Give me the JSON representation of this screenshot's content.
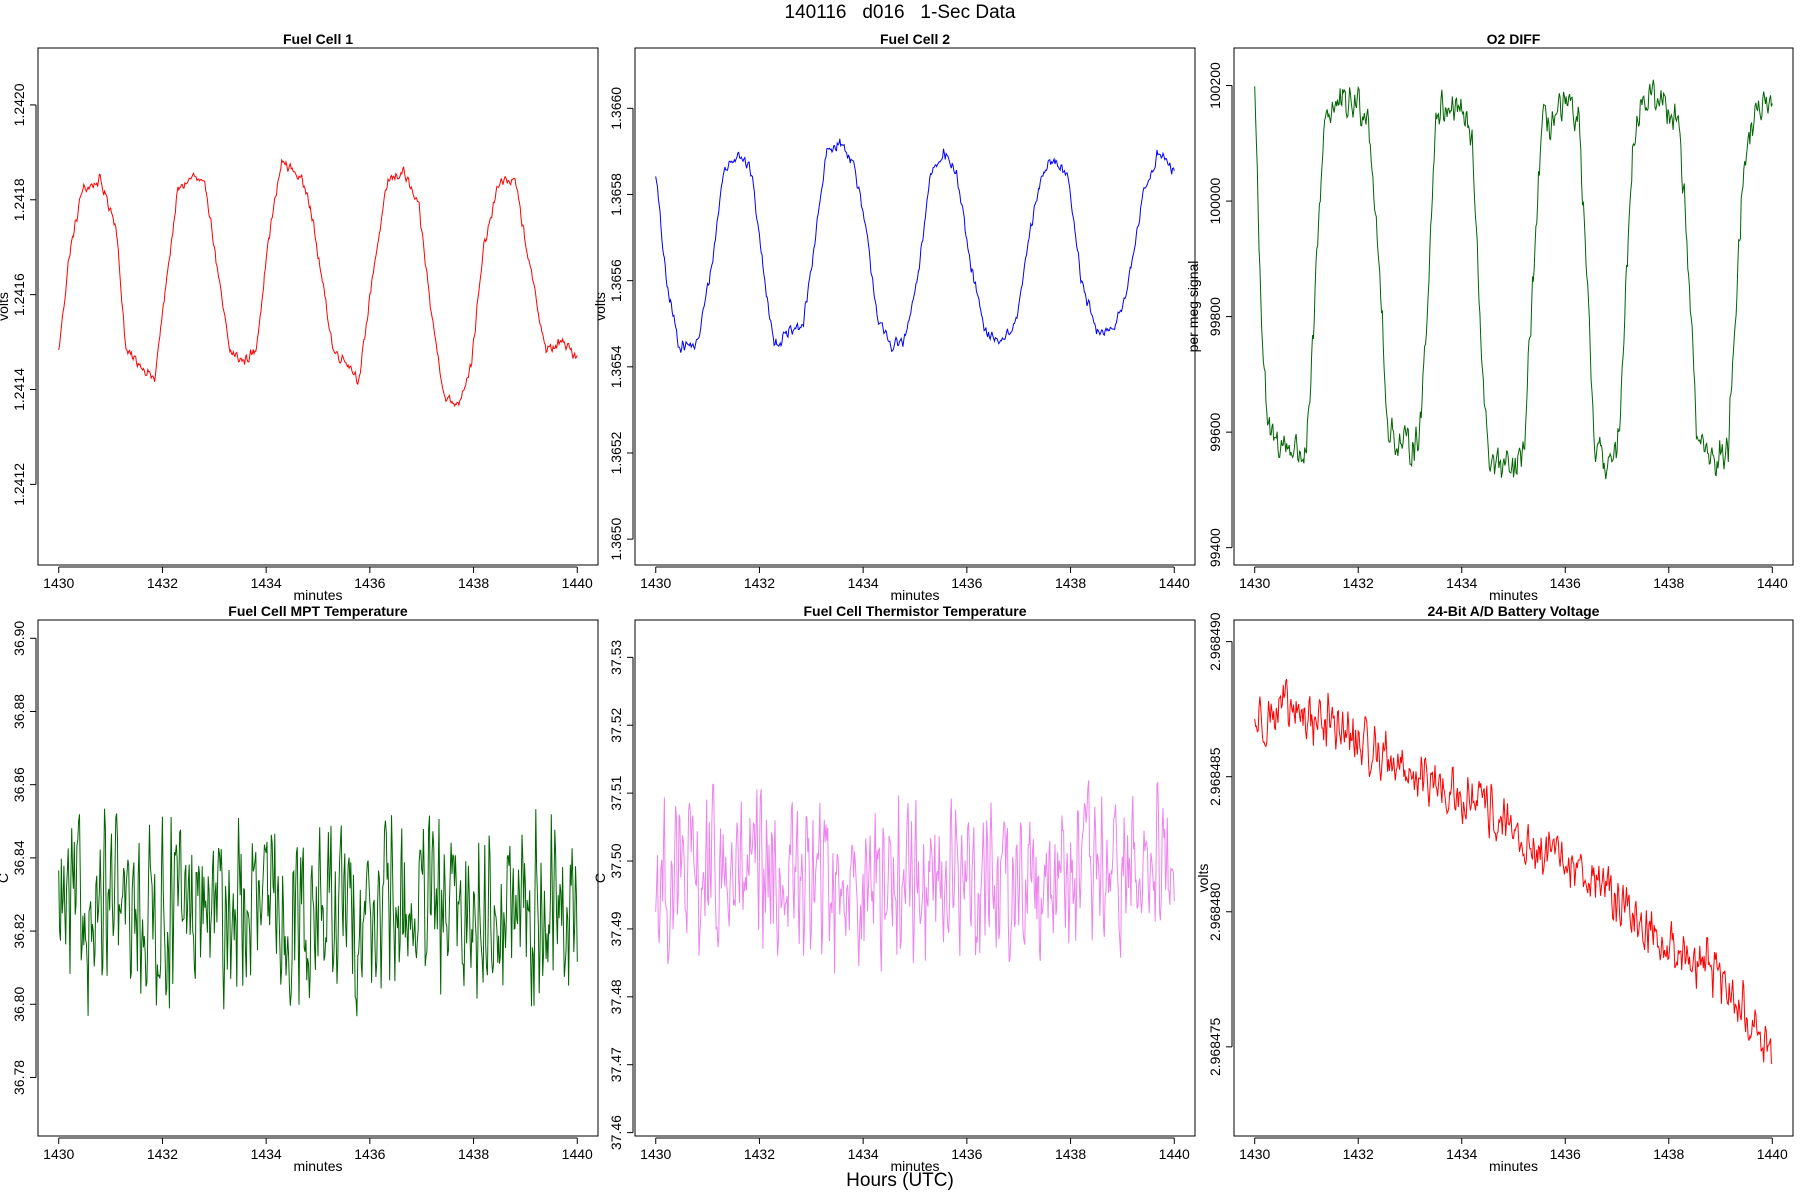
{
  "page": {
    "title": "140116   d016   1-Sec Data",
    "xlabel_global": "Hours (UTC)"
  },
  "chart_data": [
    {
      "type": "line",
      "title": "Fuel Cell 1",
      "xlabel": "minutes",
      "ylabel": "volts",
      "color": "#ff0000",
      "xlim": [
        1429.6,
        1440.4
      ],
      "ylim": [
        1.24103,
        1.24212
      ],
      "xticks": [
        1430,
        1432,
        1434,
        1436,
        1438,
        1440
      ],
      "yticks": [
        1.2412,
        1.2414,
        1.2416,
        1.2418,
        1.242
      ],
      "ytick_labels": [
        "1.2412",
        "1.2414",
        "1.2416",
        "1.2418",
        "1.2420"
      ],
      "series": [
        {
          "x": [
            1430.0,
            1430.2,
            1430.45,
            1430.8,
            1431.1,
            1431.3,
            1431.6,
            1431.85,
            1432.1,
            1432.3,
            1432.6,
            1432.85,
            1433.1,
            1433.3,
            1433.55,
            1433.8,
            1434.05,
            1434.3,
            1434.55,
            1434.8,
            1435.05,
            1435.3,
            1435.55,
            1435.8,
            1436.05,
            1436.35,
            1436.65,
            1436.95,
            1437.2,
            1437.45,
            1437.7,
            1437.95,
            1438.2,
            1438.5,
            1438.8,
            1439.1,
            1439.4,
            1439.7,
            1440.0
          ],
          "y": [
            1.24148,
            1.24168,
            1.24182,
            1.24184,
            1.24175,
            1.24148,
            1.24145,
            1.24142,
            1.24165,
            1.24182,
            1.24185,
            1.24182,
            1.24162,
            1.24148,
            1.24146,
            1.24148,
            1.24172,
            1.24188,
            1.24186,
            1.24182,
            1.24165,
            1.24148,
            1.24146,
            1.24142,
            1.24164,
            1.24184,
            1.24186,
            1.24178,
            1.24155,
            1.24138,
            1.24137,
            1.24145,
            1.2417,
            1.24184,
            1.24184,
            1.24165,
            1.24148,
            1.2415,
            1.24147
          ]
        }
      ],
      "noise": 1.5e-05
    },
    {
      "type": "line",
      "title": "Fuel Cell 2",
      "xlabel": "minutes",
      "ylabel": "volts",
      "color": "#0000ff",
      "xlim": [
        1429.6,
        1440.4
      ],
      "ylim": [
        1.36494,
        1.36614
      ],
      "xticks": [
        1430,
        1432,
        1434,
        1436,
        1438,
        1440
      ],
      "yticks": [
        1.365,
        1.3652,
        1.3654,
        1.3656,
        1.3658,
        1.366
      ],
      "ytick_labels": [
        "1.3650",
        "1.3652",
        "1.3654",
        "1.3656",
        "1.3658",
        "1.3660"
      ],
      "series": [
        {
          "x": [
            1430.0,
            1430.2,
            1430.45,
            1430.8,
            1431.1,
            1431.3,
            1431.6,
            1431.85,
            1432.1,
            1432.3,
            1432.6,
            1432.85,
            1433.1,
            1433.3,
            1433.55,
            1433.8,
            1434.05,
            1434.3,
            1434.55,
            1434.8,
            1435.05,
            1435.3,
            1435.55,
            1435.8,
            1436.05,
            1436.35,
            1436.65,
            1436.95,
            1437.2,
            1437.45,
            1437.7,
            1437.95,
            1438.2,
            1438.5,
            1438.8,
            1439.1,
            1439.4,
            1439.7,
            1440.0
          ],
          "y": [
            1.36585,
            1.3656,
            1.36545,
            1.36545,
            1.36565,
            1.36585,
            1.3659,
            1.36585,
            1.3656,
            1.36545,
            1.36548,
            1.3655,
            1.36572,
            1.3659,
            1.36592,
            1.36588,
            1.36572,
            1.3655,
            1.36545,
            1.36546,
            1.3656,
            1.36585,
            1.3659,
            1.36585,
            1.36565,
            1.36548,
            1.36546,
            1.3655,
            1.3657,
            1.36585,
            1.36588,
            1.36585,
            1.3656,
            1.36548,
            1.36548,
            1.36558,
            1.3658,
            1.3659,
            1.36585
          ]
        }
      ],
      "noise": 1.8e-05
    },
    {
      "type": "line",
      "title": "O2 DIFF",
      "xlabel": "minutes",
      "ylabel": "per meg signal",
      "color": "#006400",
      "xlim": [
        1429.6,
        1440.4
      ],
      "ylim": [
        99370,
        100265
      ],
      "xticks": [
        1430,
        1432,
        1434,
        1436,
        1438,
        1440
      ],
      "yticks": [
        99400,
        99600,
        99800,
        100000,
        100200
      ],
      "ytick_labels": [
        "99400",
        "99600",
        "99800",
        "100000",
        "100200"
      ],
      "series": [
        {
          "x": [
            1430.0,
            1430.08,
            1430.15,
            1430.25,
            1430.5,
            1430.8,
            1431.0,
            1431.1,
            1431.2,
            1431.35,
            1431.5,
            1432.0,
            1432.2,
            1432.4,
            1432.55,
            1432.75,
            1433.0,
            1433.2,
            1433.35,
            1433.5,
            1433.75,
            1434.0,
            1434.2,
            1434.35,
            1434.5,
            1434.75,
            1435.0,
            1435.2,
            1435.4,
            1435.55,
            1435.75,
            1436.0,
            1436.25,
            1436.4,
            1436.55,
            1436.75,
            1437.0,
            1437.15,
            1437.3,
            1437.45,
            1437.75,
            1438.0,
            1438.2,
            1438.4,
            1438.55,
            1438.75,
            1439.0,
            1439.15,
            1439.25,
            1439.4,
            1439.55,
            1439.75,
            1440.0
          ],
          "y": [
            100200,
            99950,
            99750,
            99600,
            99580,
            99570,
            99560,
            99700,
            99900,
            100150,
            100160,
            100170,
            100150,
            99900,
            99620,
            99580,
            99575,
            99600,
            99850,
            100150,
            100170,
            100160,
            100100,
            99800,
            99560,
            99540,
            99530,
            99560,
            99900,
            100130,
            100140,
            100160,
            100150,
            99900,
            99580,
            99550,
            99550,
            99800,
            100100,
            100170,
            100180,
            100160,
            100140,
            99850,
            99590,
            99560,
            99550,
            99580,
            99750,
            100000,
            100120,
            100160,
            100150
          ]
        }
      ],
      "noise": 40
    },
    {
      "type": "line",
      "title": "Fuel Cell MPT Temperature",
      "xlabel": "minutes",
      "ylabel": "C",
      "color": "#006400",
      "xlim": [
        1429.6,
        1440.4
      ],
      "ylim": [
        36.764,
        36.905
      ],
      "xticks": [
        1430,
        1432,
        1434,
        1436,
        1438,
        1440
      ],
      "yticks": [
        36.78,
        36.8,
        36.82,
        36.84,
        36.86,
        36.88,
        36.9
      ],
      "ytick_labels": [
        "36.78",
        "36.80",
        "36.82",
        "36.84",
        "36.86",
        "36.88",
        "36.90"
      ],
      "series": [
        {
          "x": [
            1430,
            1440
          ],
          "y": [
            36.825,
            36.825
          ]
        }
      ],
      "noise": 0.03
    },
    {
      "type": "line",
      "title": "Fuel Cell Thermistor Temperature",
      "xlabel": "minutes",
      "ylabel": "C",
      "color": "#ee82ee",
      "xlim": [
        1429.6,
        1440.4
      ],
      "ylim": [
        37.4595,
        37.5355
      ],
      "xticks": [
        1430,
        1432,
        1434,
        1436,
        1438,
        1440
      ],
      "yticks": [
        37.46,
        37.47,
        37.48,
        37.49,
        37.5,
        37.51,
        37.52,
        37.53
      ],
      "ytick_labels": [
        "37.46",
        "37.47",
        "37.48",
        "37.49",
        "37.50",
        "37.51",
        "37.52",
        "37.53"
      ],
      "series": [
        {
          "x": [
            1430,
            1440
          ],
          "y": [
            37.497,
            37.498
          ]
        }
      ],
      "noise": 0.015
    },
    {
      "type": "line",
      "title": "24-Bit A/D Battery Voltage",
      "xlabel": "minutes",
      "ylabel": "volts",
      "color": "#ff0000",
      "xlim": [
        1429.6,
        1440.4
      ],
      "ylim": [
        2.9684717,
        2.9684908
      ],
      "xticks": [
        1430,
        1432,
        1434,
        1436,
        1438,
        1440
      ],
      "yticks": [
        2.968475,
        2.96848,
        2.968485,
        2.96849
      ],
      "ytick_labels": [
        "2.968475",
        "2.968480",
        "2.968485",
        "2.968490"
      ],
      "series": [
        {
          "x": [
            1430.0,
            1430.5,
            1431.0,
            1431.5,
            1432.0,
            1432.5,
            1433.0,
            1433.5,
            1434.0,
            1434.5,
            1435.0,
            1435.5,
            1436.0,
            1436.5,
            1437.0,
            1437.5,
            1438.0,
            1438.5,
            1439.0,
            1439.5,
            1440.0
          ],
          "y": [
            2.968487,
            2.9684875,
            2.9684872,
            2.968487,
            2.9684862,
            2.9684858,
            2.9684852,
            2.9684845,
            2.9684842,
            2.9684838,
            2.9684828,
            2.9684822,
            2.9684818,
            2.9684814,
            2.9684805,
            2.9684795,
            2.9684788,
            2.9684782,
            2.9684775,
            2.9684762,
            2.9684745
          ]
        }
      ],
      "noise": 1.2e-06
    }
  ]
}
